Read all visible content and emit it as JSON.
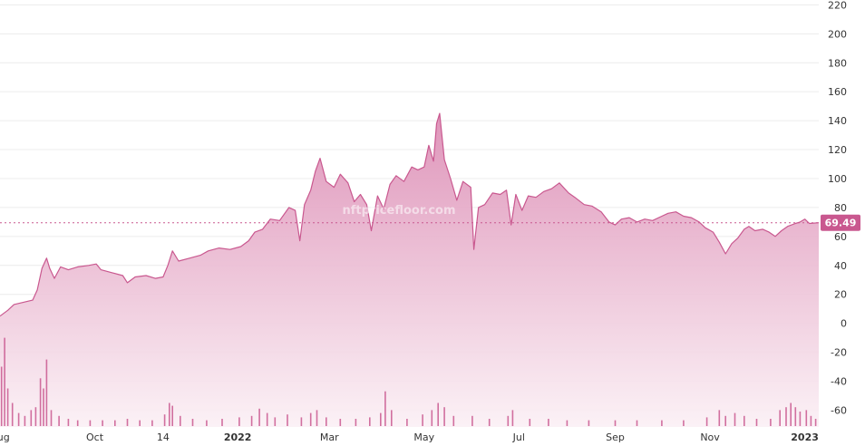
{
  "chart_data": {
    "type": "area",
    "watermark": "nftpricefloor.com",
    "y_ticks": [
      220,
      200,
      180,
      160,
      140,
      120,
      100,
      80,
      60,
      40,
      20,
      0,
      -20,
      -40,
      -60
    ],
    "ylim": [
      -71,
      224
    ],
    "x_ticks": [
      {
        "label": "Aug",
        "date": "2021-08-01",
        "bold": false
      },
      {
        "label": "Oct",
        "date": "2021-10-01",
        "bold": false
      },
      {
        "label": "14",
        "date": "2021-11-14",
        "bold": false
      },
      {
        "label": "2022",
        "date": "2022-01-01",
        "bold": true
      },
      {
        "label": "Mar",
        "date": "2022-03-01",
        "bold": false
      },
      {
        "label": "May",
        "date": "2022-05-01",
        "bold": false
      },
      {
        "label": "Jul",
        "date": "2022-07-01",
        "bold": false
      },
      {
        "label": "Sep",
        "date": "2022-09-01",
        "bold": false
      },
      {
        "label": "Nov",
        "date": "2022-11-01",
        "bold": false
      },
      {
        "label": "2023",
        "date": "2023-01-01",
        "bold": true
      }
    ],
    "xlim": [
      "2021-08-01",
      "2023-01-10"
    ],
    "last_value": 69.49,
    "last_value_label": "69.49",
    "colors": {
      "line": "#c9588f",
      "fill_top": "#dd8fb6",
      "fill_bottom": "#fbf0f5",
      "label_bg": "#c9588f",
      "grid": "#ececec"
    },
    "grid": true,
    "series": [
      {
        "kind": "price",
        "points": [
          [
            "2021-08-01",
            5
          ],
          [
            "2021-08-06",
            9
          ],
          [
            "2021-08-10",
            13
          ],
          [
            "2021-08-18",
            15
          ],
          [
            "2021-08-22",
            16
          ],
          [
            "2021-08-25",
            23
          ],
          [
            "2021-08-28",
            38
          ],
          [
            "2021-08-31",
            45
          ],
          [
            "2021-09-02",
            38
          ],
          [
            "2021-09-05",
            31
          ],
          [
            "2021-09-09",
            39
          ],
          [
            "2021-09-14",
            37
          ],
          [
            "2021-09-20",
            39
          ],
          [
            "2021-09-27",
            40
          ],
          [
            "2021-10-02",
            41
          ],
          [
            "2021-10-05",
            37
          ],
          [
            "2021-10-12",
            35
          ],
          [
            "2021-10-19",
            33
          ],
          [
            "2021-10-22",
            28
          ],
          [
            "2021-10-27",
            32
          ],
          [
            "2021-11-03",
            33
          ],
          [
            "2021-11-09",
            31
          ],
          [
            "2021-11-14",
            32
          ],
          [
            "2021-11-17",
            40
          ],
          [
            "2021-11-20",
            50
          ],
          [
            "2021-11-24",
            43
          ],
          [
            "2021-12-01",
            45
          ],
          [
            "2021-12-08",
            47
          ],
          [
            "2021-12-13",
            50
          ],
          [
            "2021-12-20",
            52
          ],
          [
            "2021-12-27",
            51
          ],
          [
            "2022-01-03",
            53
          ],
          [
            "2022-01-08",
            57
          ],
          [
            "2022-01-12",
            63
          ],
          [
            "2022-01-17",
            65
          ],
          [
            "2022-01-22",
            72
          ],
          [
            "2022-01-28",
            71
          ],
          [
            "2022-02-03",
            80
          ],
          [
            "2022-02-07",
            78
          ],
          [
            "2022-02-10",
            57
          ],
          [
            "2022-02-13",
            82
          ],
          [
            "2022-02-17",
            92
          ],
          [
            "2022-02-20",
            105
          ],
          [
            "2022-02-23",
            114
          ],
          [
            "2022-02-27",
            98
          ],
          [
            "2022-03-04",
            94
          ],
          [
            "2022-03-08",
            103
          ],
          [
            "2022-03-13",
            97
          ],
          [
            "2022-03-17",
            84
          ],
          [
            "2022-03-21",
            89
          ],
          [
            "2022-03-25",
            82
          ],
          [
            "2022-03-28",
            64
          ],
          [
            "2022-04-01",
            88
          ],
          [
            "2022-04-05",
            79
          ],
          [
            "2022-04-09",
            96
          ],
          [
            "2022-04-13",
            102
          ],
          [
            "2022-04-18",
            98
          ],
          [
            "2022-04-23",
            108
          ],
          [
            "2022-04-27",
            106
          ],
          [
            "2022-05-01",
            108
          ],
          [
            "2022-05-04",
            123
          ],
          [
            "2022-05-07",
            112
          ],
          [
            "2022-05-09",
            138
          ],
          [
            "2022-05-11",
            145
          ],
          [
            "2022-05-14",
            113
          ],
          [
            "2022-05-18",
            100
          ],
          [
            "2022-05-22",
            85
          ],
          [
            "2022-05-26",
            98
          ],
          [
            "2022-05-31",
            94
          ],
          [
            "2022-06-02",
            51
          ],
          [
            "2022-06-05",
            80
          ],
          [
            "2022-06-09",
            82
          ],
          [
            "2022-06-14",
            90
          ],
          [
            "2022-06-19",
            89
          ],
          [
            "2022-06-23",
            92
          ],
          [
            "2022-06-26",
            68
          ],
          [
            "2022-06-29",
            89
          ],
          [
            "2022-07-03",
            78
          ],
          [
            "2022-07-07",
            88
          ],
          [
            "2022-07-12",
            87
          ],
          [
            "2022-07-17",
            91
          ],
          [
            "2022-07-22",
            93
          ],
          [
            "2022-07-27",
            97
          ],
          [
            "2022-08-02",
            90
          ],
          [
            "2022-08-06",
            87
          ],
          [
            "2022-08-12",
            82
          ],
          [
            "2022-08-17",
            81
          ],
          [
            "2022-08-23",
            77
          ],
          [
            "2022-08-28",
            70
          ],
          [
            "2022-09-01",
            68
          ],
          [
            "2022-09-05",
            72
          ],
          [
            "2022-09-10",
            73
          ],
          [
            "2022-09-15",
            70
          ],
          [
            "2022-09-20",
            72
          ],
          [
            "2022-09-25",
            71
          ],
          [
            "2022-10-01",
            74
          ],
          [
            "2022-10-05",
            76
          ],
          [
            "2022-10-10",
            77
          ],
          [
            "2022-10-15",
            74
          ],
          [
            "2022-10-20",
            73
          ],
          [
            "2022-10-25",
            70
          ],
          [
            "2022-10-29",
            66
          ],
          [
            "2022-11-03",
            63
          ],
          [
            "2022-11-07",
            56
          ],
          [
            "2022-11-11",
            48
          ],
          [
            "2022-11-15",
            55
          ],
          [
            "2022-11-19",
            59
          ],
          [
            "2022-11-23",
            65
          ],
          [
            "2022-11-26",
            67
          ],
          [
            "2022-11-30",
            64
          ],
          [
            "2022-12-05",
            65
          ],
          [
            "2022-12-09",
            63
          ],
          [
            "2022-12-13",
            60
          ],
          [
            "2022-12-17",
            64
          ],
          [
            "2022-12-21",
            67
          ],
          [
            "2022-12-26",
            69
          ],
          [
            "2022-12-29",
            70
          ],
          [
            "2023-01-01",
            72
          ],
          [
            "2023-01-04",
            69
          ],
          [
            "2023-01-10",
            69.49
          ]
        ]
      },
      {
        "kind": "volume",
        "baseline": -71,
        "bars": [
          [
            "2021-08-02",
            -30
          ],
          [
            "2021-08-04",
            -10
          ],
          [
            "2021-08-06",
            -45
          ],
          [
            "2021-08-09",
            -55
          ],
          [
            "2021-08-13",
            -62
          ],
          [
            "2021-08-17",
            -64
          ],
          [
            "2021-08-21",
            -60
          ],
          [
            "2021-08-24",
            -58
          ],
          [
            "2021-08-27",
            -38
          ],
          [
            "2021-08-29",
            -45
          ],
          [
            "2021-08-31",
            -25
          ],
          [
            "2021-09-03",
            -60
          ],
          [
            "2021-09-08",
            -64
          ],
          [
            "2021-09-14",
            -66
          ],
          [
            "2021-09-20",
            -67
          ],
          [
            "2021-09-28",
            -67
          ],
          [
            "2021-10-06",
            -67
          ],
          [
            "2021-10-14",
            -67
          ],
          [
            "2021-10-22",
            -66
          ],
          [
            "2021-10-30",
            -67
          ],
          [
            "2021-11-07",
            -67
          ],
          [
            "2021-11-15",
            -63
          ],
          [
            "2021-11-18",
            -55
          ],
          [
            "2021-11-20",
            -57
          ],
          [
            "2021-11-25",
            -64
          ],
          [
            "2021-12-03",
            -66
          ],
          [
            "2021-12-12",
            -67
          ],
          [
            "2021-12-22",
            -66
          ],
          [
            "2022-01-02",
            -65
          ],
          [
            "2022-01-10",
            -64
          ],
          [
            "2022-01-15",
            -59
          ],
          [
            "2022-01-20",
            -62
          ],
          [
            "2022-01-25",
            -65
          ],
          [
            "2022-02-02",
            -63
          ],
          [
            "2022-02-11",
            -65
          ],
          [
            "2022-02-17",
            -62
          ],
          [
            "2022-02-21",
            -60
          ],
          [
            "2022-02-27",
            -65
          ],
          [
            "2022-03-08",
            -66
          ],
          [
            "2022-03-18",
            -66
          ],
          [
            "2022-03-27",
            -65
          ],
          [
            "2022-04-03",
            -62
          ],
          [
            "2022-04-06",
            -47
          ],
          [
            "2022-04-10",
            -60
          ],
          [
            "2022-04-20",
            -66
          ],
          [
            "2022-04-30",
            -63
          ],
          [
            "2022-05-06",
            -60
          ],
          [
            "2022-05-10",
            -55
          ],
          [
            "2022-05-14",
            -58
          ],
          [
            "2022-05-20",
            -64
          ],
          [
            "2022-06-01",
            -64
          ],
          [
            "2022-06-12",
            -66
          ],
          [
            "2022-06-24",
            -64
          ],
          [
            "2022-06-27",
            -60
          ],
          [
            "2022-07-08",
            -66
          ],
          [
            "2022-07-20",
            -66
          ],
          [
            "2022-08-01",
            -67
          ],
          [
            "2022-08-15",
            -67
          ],
          [
            "2022-09-01",
            -67
          ],
          [
            "2022-09-15",
            -67
          ],
          [
            "2022-10-01",
            -67
          ],
          [
            "2022-10-15",
            -67
          ],
          [
            "2022-10-30",
            -65
          ],
          [
            "2022-11-07",
            -60
          ],
          [
            "2022-11-11",
            -64
          ],
          [
            "2022-11-17",
            -62
          ],
          [
            "2022-11-23",
            -64
          ],
          [
            "2022-12-01",
            -66
          ],
          [
            "2022-12-10",
            -66
          ],
          [
            "2022-12-16",
            -60
          ],
          [
            "2022-12-20",
            -58
          ],
          [
            "2022-12-23",
            -55
          ],
          [
            "2022-12-26",
            -58
          ],
          [
            "2022-12-29",
            -61
          ],
          [
            "2023-01-02",
            -60
          ],
          [
            "2023-01-05",
            -64
          ],
          [
            "2023-01-08",
            -66
          ]
        ]
      }
    ]
  }
}
